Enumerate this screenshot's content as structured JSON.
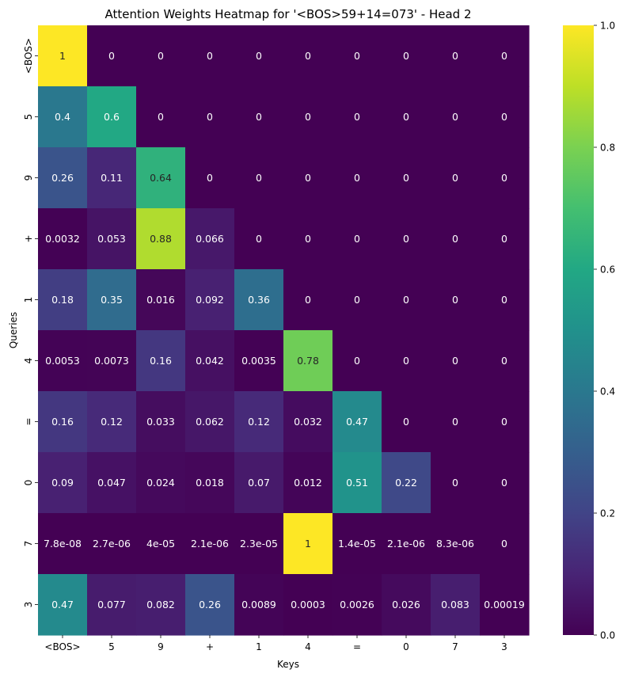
{
  "chart_data": {
    "type": "heatmap",
    "title": "Attention Weights Heatmap for '<BOS>59+14=073' - Head 2",
    "xlabel": "Keys",
    "ylabel": "Queries",
    "x_labels": [
      "<BOS>",
      "5",
      "9",
      "+",
      "1",
      "4",
      "=",
      "0",
      "7",
      "3"
    ],
    "y_labels": [
      "<BOS>",
      "5",
      "9",
      "+",
      "1",
      "4",
      "=",
      "0",
      "7",
      "3"
    ],
    "values": [
      [
        1,
        0,
        0,
        0,
        0,
        0,
        0,
        0,
        0,
        0
      ],
      [
        0.4,
        0.6,
        0,
        0,
        0,
        0,
        0,
        0,
        0,
        0
      ],
      [
        0.26,
        0.11,
        0.64,
        0,
        0,
        0,
        0,
        0,
        0,
        0
      ],
      [
        0.0032,
        0.053,
        0.88,
        0.066,
        0,
        0,
        0,
        0,
        0,
        0
      ],
      [
        0.18,
        0.35,
        0.016,
        0.092,
        0.36,
        0,
        0,
        0,
        0,
        0
      ],
      [
        0.0053,
        0.0073,
        0.16,
        0.042,
        0.0035,
        0.78,
        0,
        0,
        0,
        0
      ],
      [
        0.16,
        0.12,
        0.033,
        0.062,
        0.12,
        0.032,
        0.47,
        0,
        0,
        0
      ],
      [
        0.09,
        0.047,
        0.024,
        0.018,
        0.07,
        0.012,
        0.51,
        0.22,
        0,
        0
      ],
      [
        7.8e-08,
        2.7e-06,
        4e-05,
        2.1e-06,
        2.3e-05,
        1,
        1.4e-05,
        2.1e-06,
        8.3e-06,
        0
      ],
      [
        0.47,
        0.077,
        0.082,
        0.26,
        0.0089,
        0.0003,
        0.0026,
        0.026,
        0.083,
        0.00019
      ]
    ],
    "cell_labels": [
      [
        "1",
        "0",
        "0",
        "0",
        "0",
        "0",
        "0",
        "0",
        "0",
        "0"
      ],
      [
        "0.4",
        "0.6",
        "0",
        "0",
        "0",
        "0",
        "0",
        "0",
        "0",
        "0"
      ],
      [
        "0.26",
        "0.11",
        "0.64",
        "0",
        "0",
        "0",
        "0",
        "0",
        "0",
        "0"
      ],
      [
        "0.0032",
        "0.053",
        "0.88",
        "0.066",
        "0",
        "0",
        "0",
        "0",
        "0",
        "0"
      ],
      [
        "0.18",
        "0.35",
        "0.016",
        "0.092",
        "0.36",
        "0",
        "0",
        "0",
        "0",
        "0"
      ],
      [
        "0.0053",
        "0.0073",
        "0.16",
        "0.042",
        "0.0035",
        "0.78",
        "0",
        "0",
        "0",
        "0"
      ],
      [
        "0.16",
        "0.12",
        "0.033",
        "0.062",
        "0.12",
        "0.032",
        "0.47",
        "0",
        "0",
        "0"
      ],
      [
        "0.09",
        "0.047",
        "0.024",
        "0.018",
        "0.07",
        "0.012",
        "0.51",
        "0.22",
        "0",
        "0"
      ],
      [
        "7.8e-08",
        "2.7e-06",
        "4e-05",
        "2.1e-06",
        "2.3e-05",
        "1",
        "1.4e-05",
        "2.1e-06",
        "8.3e-06",
        "0"
      ],
      [
        "0.47",
        "0.077",
        "0.082",
        "0.26",
        "0.0089",
        "0.0003",
        "0.0026",
        "0.026",
        "0.083",
        "0.00019"
      ]
    ],
    "colormap": "viridis",
    "vmin": 0,
    "vmax": 1,
    "colorbar_ticks": [
      "0.0",
      "0.2",
      "0.4",
      "0.6",
      "0.8",
      "1.0"
    ],
    "colorbar_tick_values": [
      0,
      0.2,
      0.4,
      0.6,
      0.8,
      1.0
    ],
    "grid": false,
    "colorbar_placement": "right"
  }
}
